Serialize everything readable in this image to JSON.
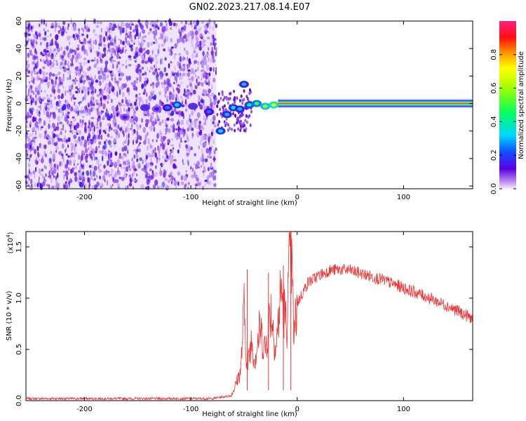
{
  "figure_title": "GN02.2023.217.08.14.E07",
  "chart_data": [
    {
      "type": "heatmap",
      "panel": "spectrogram",
      "xlabel": "Height of straight line (km)",
      "ylabel": "Frequency (Hz)",
      "xlim": [
        -255,
        165
      ],
      "ylim": [
        -62,
        60
      ],
      "xticks": [
        -200,
        -100,
        0,
        100
      ],
      "yticks": [
        60,
        40,
        20,
        0,
        -20,
        -40,
        -60
      ],
      "noise_region_x": [
        -255,
        -76
      ],
      "dominant_line": {
        "x_start": -18,
        "x_end": 165,
        "frequency": 0,
        "color_scale_value": 1.0,
        "descr": "strong constant signal at 0 Hz"
      },
      "scattered_segments": [
        {
          "x": -162,
          "y": -10,
          "v": 0.15
        },
        {
          "x": -143,
          "y": -3,
          "v": 0.2
        },
        {
          "x": -132,
          "y": -4,
          "v": 0.15
        },
        {
          "x": -122,
          "y": -3,
          "v": 0.25
        },
        {
          "x": -113,
          "y": -1,
          "v": 0.35
        },
        {
          "x": -98,
          "y": -2,
          "v": 0.2
        },
        {
          "x": -83,
          "y": -6,
          "v": 0.25
        },
        {
          "x": -72,
          "y": -20,
          "v": 0.35
        },
        {
          "x": -66,
          "y": -8,
          "v": 0.3
        },
        {
          "x": -60,
          "y": -3,
          "v": 0.35
        },
        {
          "x": -54,
          "y": -4,
          "v": 0.3
        },
        {
          "x": -50,
          "y": 14,
          "v": 0.3
        },
        {
          "x": -45,
          "y": -1,
          "v": 0.4
        },
        {
          "x": -38,
          "y": 0,
          "v": 0.5
        },
        {
          "x": -30,
          "y": -2,
          "v": 0.6
        },
        {
          "x": -22,
          "y": -1,
          "v": 0.7
        }
      ],
      "colorbar": {
        "label": "Normalized spectral amplitude",
        "ticks": [
          "0.0",
          "0.2",
          "0.4",
          "0.6",
          "0.8"
        ],
        "range": [
          0,
          1
        ]
      }
    },
    {
      "type": "line",
      "panel": "snr",
      "xlabel": "Height of straight line (km)",
      "ylabel": "SNR (10 * v/v)",
      "y_multiplier": "(x10",
      "y_multiplier_exp": "4",
      "y_multiplier_close": ")",
      "xlim": [
        -255,
        165
      ],
      "ylim": [
        0,
        1.65
      ],
      "xticks": [
        -200,
        -100,
        0,
        100
      ],
      "yticks": [
        "0.0",
        "0.5",
        "1.0",
        "1.5"
      ],
      "line_color": "#ee3333",
      "series": [
        {
          "x": [
            -255,
            -200,
            -150,
            -100,
            -80,
            -62,
            -58,
            -53,
            -50,
            -47,
            -43,
            -40,
            -35,
            -30,
            -25,
            -20,
            -15,
            -10,
            -6,
            -3,
            0,
            5,
            10,
            20,
            30,
            40,
            50,
            60,
            80,
            100,
            120,
            140,
            150,
            165
          ],
          "y": [
            0.02,
            0.02,
            0.02,
            0.02,
            0.02,
            0.05,
            0.15,
            0.3,
            0.9,
            0.3,
            0.6,
            0.4,
            0.7,
            0.5,
            0.9,
            0.5,
            1.1,
            0.7,
            1.6,
            0.6,
            0.95,
            1.05,
            1.15,
            1.22,
            1.27,
            1.28,
            1.27,
            1.24,
            1.18,
            1.1,
            1.02,
            0.93,
            0.88,
            0.8
          ],
          "spikes": [
            {
              "x": -47,
              "y": 1.28
            },
            {
              "x": -27,
              "y": 1.25
            },
            {
              "x": -13,
              "y": 1.32
            },
            {
              "x": -6,
              "y": 1.65
            }
          ]
        }
      ]
    }
  ]
}
